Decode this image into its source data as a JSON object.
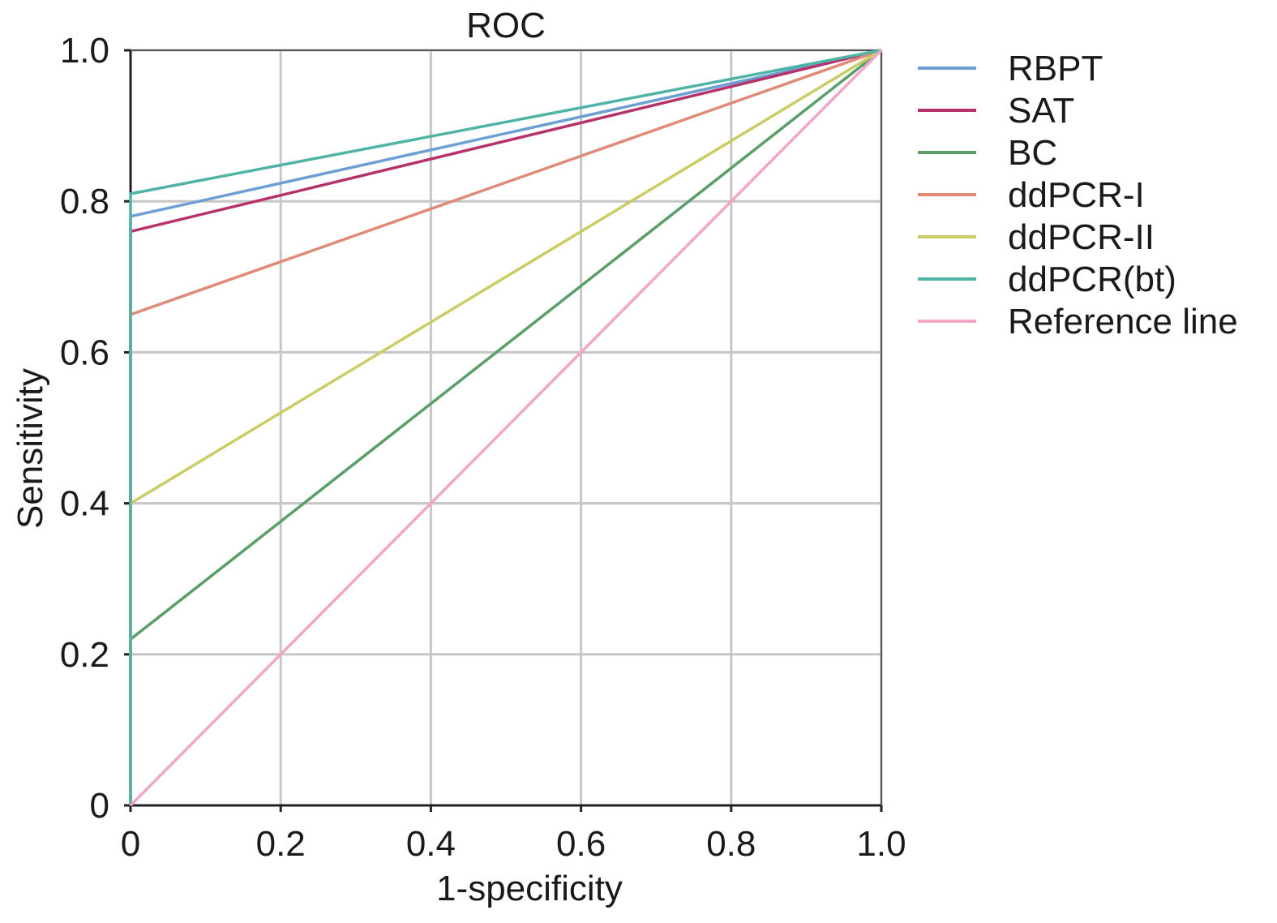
{
  "chart_data": {
    "type": "line",
    "title": "ROC",
    "xlabel": "1-specificity",
    "ylabel": "Sensitivity",
    "xlim": [
      0,
      1
    ],
    "ylim": [
      0,
      1
    ],
    "xticks": [
      0,
      0.2,
      0.4,
      0.6,
      0.8,
      1.0
    ],
    "yticks": [
      0,
      0.2,
      0.4,
      0.6,
      0.8,
      1.0
    ],
    "xtick_labels": [
      "0",
      "0.2",
      "0.4",
      "0.6",
      "0.8",
      "1.0"
    ],
    "ytick_labels": [
      "0",
      "0.2",
      "0.4",
      "0.6",
      "0.8",
      "1.0"
    ],
    "grid": true,
    "legend_position": "right",
    "series": [
      {
        "name": "RBPT",
        "color": "#6c9fd4",
        "x": [
          0,
          0,
          1
        ],
        "y": [
          0,
          0.78,
          1
        ]
      },
      {
        "name": "SAT",
        "color": "#b5336a",
        "x": [
          0,
          0,
          1
        ],
        "y": [
          0,
          0.76,
          1
        ]
      },
      {
        "name": "BC",
        "color": "#5a9e6a",
        "x": [
          0,
          0,
          1
        ],
        "y": [
          0,
          0.22,
          1
        ]
      },
      {
        "name": "ddPCR-I",
        "color": "#e08a78",
        "x": [
          0,
          0,
          1
        ],
        "y": [
          0,
          0.65,
          1
        ]
      },
      {
        "name": "ddPCR-II",
        "color": "#cccc66",
        "x": [
          0,
          0,
          1
        ],
        "y": [
          0,
          0.4,
          1
        ]
      },
      {
        "name": "ddPCR(bt)",
        "color": "#4fb3a6",
        "x": [
          0,
          0,
          1
        ],
        "y": [
          0,
          0.81,
          1
        ]
      },
      {
        "name": "Reference line",
        "color": "#f2a6c8",
        "x": [
          0,
          1
        ],
        "y": [
          0,
          1
        ]
      }
    ]
  }
}
